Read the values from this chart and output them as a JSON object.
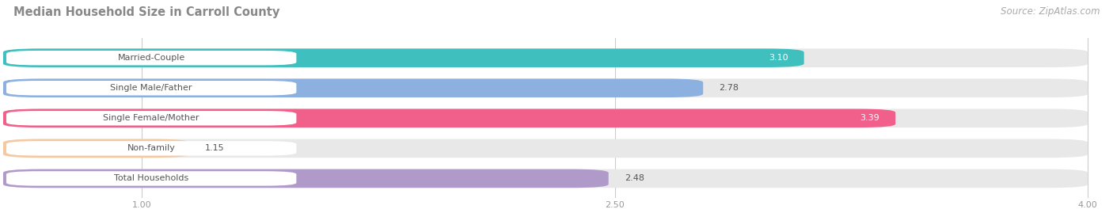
{
  "title": "Median Household Size in Carroll County",
  "source": "Source: ZipAtlas.com",
  "categories": [
    "Married-Couple",
    "Single Male/Father",
    "Single Female/Mother",
    "Non-family",
    "Total Households"
  ],
  "values": [
    3.1,
    2.78,
    3.39,
    1.15,
    2.48
  ],
  "bar_colors": [
    "#40bfbf",
    "#8cb0e0",
    "#f0608a",
    "#f5c8a0",
    "#b09aca"
  ],
  "bar_bg_color": "#e8e8e8",
  "xmin": 1.0,
  "xmax": 4.0,
  "xticks": [
    1.0,
    2.5,
    4.0
  ],
  "title_fontsize": 10.5,
  "source_fontsize": 8.5,
  "bar_label_fontsize": 8,
  "value_fontsize": 8,
  "tick_fontsize": 8,
  "fig_width": 14.06,
  "fig_height": 2.69,
  "fig_bg_color": "#ffffff",
  "value_inside_color": "#ffffff",
  "value_outside_color": "#555555",
  "value_inside_threshold": 3.0
}
